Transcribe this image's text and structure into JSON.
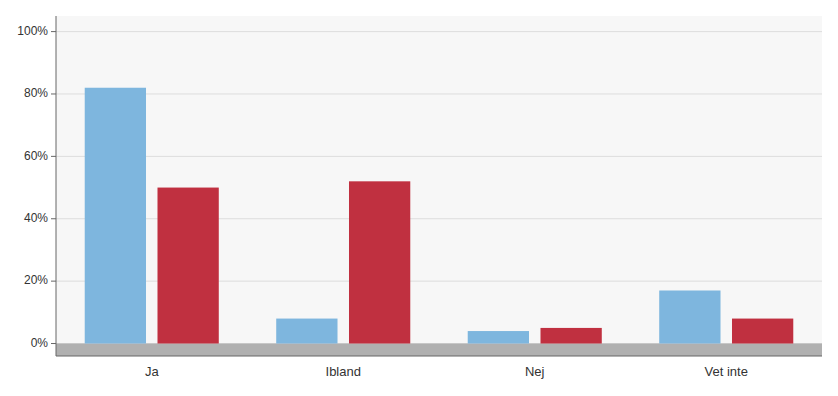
{
  "chart_data": {
    "type": "bar",
    "categories": [
      "Ja",
      "Ibland",
      "Nej",
      "Vet inte"
    ],
    "series": [
      {
        "color": "#7eb6de",
        "values": [
          82,
          8,
          4,
          17
        ]
      },
      {
        "color": "#c03040",
        "values": [
          50,
          52,
          5,
          8
        ]
      }
    ],
    "ylim": [
      -4,
      105
    ],
    "yticks": [
      {
        "value": 0,
        "label": "0%"
      },
      {
        "value": 20,
        "label": "20%"
      },
      {
        "value": 40,
        "label": "40%"
      },
      {
        "value": 60,
        "label": "60%"
      },
      {
        "value": 80,
        "label": "80%"
      },
      {
        "value": 100,
        "label": "100%"
      }
    ],
    "grid": true
  }
}
